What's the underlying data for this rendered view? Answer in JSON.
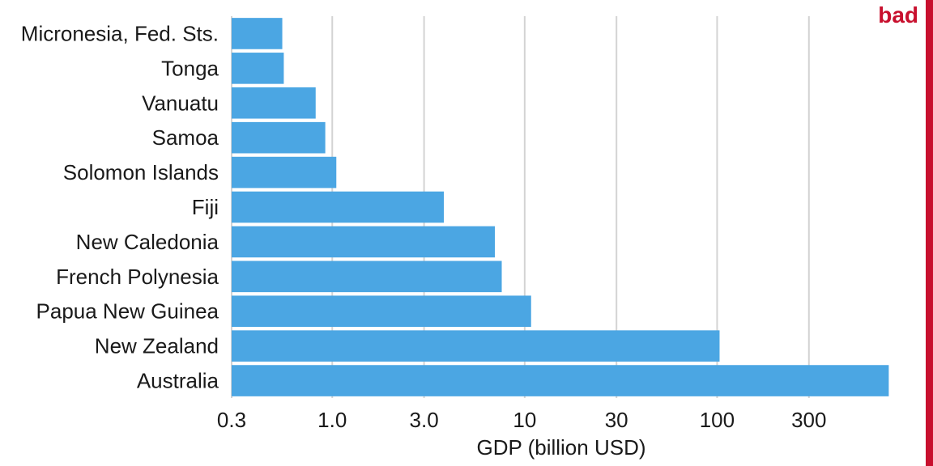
{
  "badge": {
    "label": "bad",
    "color": "#c8102e"
  },
  "chart_data": {
    "type": "bar",
    "orientation": "horizontal",
    "xscale": "log",
    "xlabel": "GDP (billion USD)",
    "ylabel": "",
    "xlim": [
      0.3,
      800
    ],
    "xticks": [
      0.3,
      1.0,
      3.0,
      10,
      30,
      100,
      300
    ],
    "xtick_labels": [
      "0.3",
      "1.0",
      "3.0",
      "10",
      "30",
      "100",
      "300"
    ],
    "grid": true,
    "bar_color": "#4ba6e3",
    "categories": [
      "Micronesia, Fed. Sts.",
      "Tonga",
      "Vanuatu",
      "Samoa",
      "Solomon Islands",
      "Fiji",
      "New Caledonia",
      "French Polynesia",
      "Papua New Guinea",
      "New Zealand",
      "Australia"
    ],
    "values": [
      0.55,
      0.56,
      0.82,
      0.92,
      1.05,
      3.8,
      7.0,
      7.6,
      10.8,
      103,
      780
    ]
  }
}
